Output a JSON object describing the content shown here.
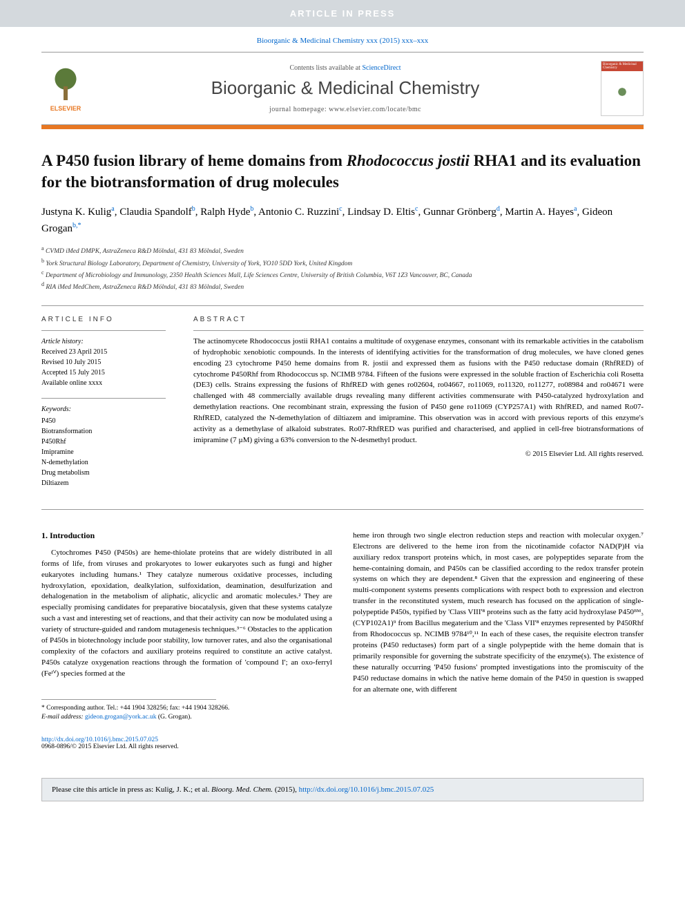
{
  "banner": {
    "article_in_press": "ARTICLE IN PRESS"
  },
  "journal_ref": {
    "text_prefix": "Bioorganic & Medicinal Chemistry xxx (2015) xxx–xxx",
    "link_color": "#0066cc"
  },
  "header": {
    "elsevier_label": "ELSEVIER",
    "contents_prefix": "Contents lists available at ",
    "contents_link": "ScienceDirect",
    "journal_title": "Bioorganic & Medicinal Chemistry",
    "homepage_prefix": "journal homepage: ",
    "homepage_url": "www.elsevier.com/locate/bmc",
    "cover_title": "Bioorganic & Medicinal Chemistry"
  },
  "title": {
    "pre": "A P450 fusion library of heme domains from ",
    "italic": "Rhodococcus jostii",
    "post": " RHA1 and its evaluation for the biotransformation of drug molecules"
  },
  "authors": [
    {
      "name": "Justyna K. Kulig",
      "aff": "a"
    },
    {
      "name": "Claudia Spandolf",
      "aff": "b"
    },
    {
      "name": "Ralph Hyde",
      "aff": "b"
    },
    {
      "name": "Antonio C. Ruzzini",
      "aff": "c"
    },
    {
      "name": "Lindsay D. Eltis",
      "aff": "c"
    },
    {
      "name": "Gunnar Grönberg",
      "aff": "d"
    },
    {
      "name": "Martin A. Hayes",
      "aff": "a"
    },
    {
      "name": "Gideon Grogan",
      "aff": "b",
      "corresponding": true
    }
  ],
  "affiliations": {
    "a": "CVMD iMed DMPK, AstraZeneca R&D Mölndal, 431 83 Mölndal, Sweden",
    "b": "York Structural Biology Laboratory, Department of Chemistry, University of York, YO10 5DD York, United Kingdom",
    "c": "Department of Microbiology and Immunology, 2350 Health Sciences Mall, Life Sciences Centre, University of British Columbia, V6T 1Z3 Vancouver, BC, Canada",
    "d": "RIA iMed MedChem, AstraZeneca R&D Mölndal, 431 83 Mölndal, Sweden"
  },
  "article_info": {
    "heading": "ARTICLE INFO",
    "history_label": "Article history:",
    "received": "Received 23 April 2015",
    "revised": "Revised 10 July 2015",
    "accepted": "Accepted 15 July 2015",
    "online": "Available online xxxx",
    "keywords_label": "Keywords:",
    "keywords": [
      "P450",
      "Biotransformation",
      "P450Rhf",
      "Imipramine",
      "N-demethylation",
      "Drug metabolism",
      "Diltiazem"
    ]
  },
  "abstract": {
    "heading": "ABSTRACT",
    "text": "The actinomycete Rhodococcus jostii RHA1 contains a multitude of oxygenase enzymes, consonant with its remarkable activities in the catabolism of hydrophobic xenobiotic compounds. In the interests of identifying activities for the transformation of drug molecules, we have cloned genes encoding 23 cytochrome P450 heme domains from R. jostii and expressed them as fusions with the P450 reductase domain (RhfRED) of cytochrome P450Rhf from Rhodococcus sp. NCIMB 9784. Fifteen of the fusions were expressed in the soluble fraction of Escherichia coli Rosetta (DE3) cells. Strains expressing the fusions of RhfRED with genes ro02604, ro04667, ro11069, ro11320, ro11277, ro08984 and ro04671 were challenged with 48 commercially available drugs revealing many different activities commensurate with P450-catalyzed hydroxylation and demethylation reactions. One recombinant strain, expressing the fusion of P450 gene ro11069 (CYP257A1) with RhfRED, and named Ro07-RhfRED, catalyzed the N-demethylation of diltiazem and imipramine. This observation was in accord with previous reports of this enzyme's activity as a demethylase of alkaloid substrates. Ro07-RhfRED was purified and characterised, and applied in cell-free biotransformations of imipramine (7 µM) giving a 63% conversion to the N-desmethyl product.",
    "copyright": "© 2015 Elsevier Ltd. All rights reserved."
  },
  "body": {
    "section_heading": "1. Introduction",
    "col1": "Cytochromes P450 (P450s) are heme-thiolate proteins that are widely distributed in all forms of life, from viruses and prokaryotes to lower eukaryotes such as fungi and higher eukaryotes including humans.¹ They catalyze numerous oxidative processes, including hydroxylation, epoxidation, dealkylation, sulfoxidation, deamination, desulfurization and dehalogenation in the metabolism of aliphatic, alicyclic and aromatic molecules.² They are especially promising candidates for preparative biocatalysis, given that these systems catalyze such a vast and interesting set of reactions, and that their activity can now be modulated using a variety of structure-guided and random mutagenesis techniques.³⁻⁶ Obstacles to the application of P450s in biotechnology include poor stability, low turnover rates, and also the organisational complexity of the cofactors and auxiliary proteins required to constitute an active catalyst. P450s catalyze oxygenation reactions through the formation of 'compound I'; an oxo-ferryl (Feᴵⱽ) species formed at the",
    "col2": "heme iron through two single electron reduction steps and reaction with molecular oxygen.⁷ Electrons are delivered to the heme iron from the nicotinamide cofactor NAD(P)H via auxiliary redox transport proteins which, in most cases, are polypeptides separate from the heme-containing domain, and P450s can be classified according to the redox transfer protein systems on which they are dependent.⁸ Given that the expression and engineering of these multi-component systems presents complications with respect both to expression and electron transfer in the reconstituted system, much research has focused on the application of single-polypeptide P450s, typified by 'Class VIII'⁸ proteins such as the fatty acid hydroxylase P450ᴮᴹ₃ (CYP102A1)⁹ from Bacillus megaterium and the 'Class VII'⁸ enzymes represented by P450Rhf from Rhodococcus sp. NCIMB 9784¹⁰,¹¹ In each of these cases, the requisite electron transfer proteins (P450 reductases) form part of a single polypeptide with the heme domain that is primarily responsible for governing the substrate specificity of the enzyme(s). The existence of these naturally occurring 'P450 fusions' prompted investigations into the promiscuity of the P450 reductase domains in which the native heme domain of the P450 in question is swapped for an alternate one, with different"
  },
  "footnote": {
    "corr_label": "* Corresponding author. Tel.: +44 1904 328256; fax: +44 1904 328266.",
    "email_label": "E-mail address:",
    "email": "gideon.grogan@york.ac.uk",
    "email_suffix": "(G. Grogan)."
  },
  "doi": {
    "url": "http://dx.doi.org/10.1016/j.bmc.2015.07.025",
    "issn_line": "0968-0896/© 2015 Elsevier Ltd. All rights reserved."
  },
  "citation": {
    "prefix": "Please cite this article in press as: Kulig, J. K.; et al. ",
    "journal": "Bioorg. Med. Chem.",
    "year": " (2015), ",
    "url": "http://dx.doi.org/10.1016/j.bmc.2015.07.025"
  },
  "colors": {
    "orange": "#e87722",
    "link": "#0066cc",
    "banner_bg": "#d4d9dd",
    "cover_header": "#c74734",
    "citation_bg": "#e8ecef"
  },
  "typography": {
    "title_fontsize": 23,
    "authors_fontsize": 15,
    "body_fontsize": 11,
    "journal_title_fontsize": 26
  }
}
